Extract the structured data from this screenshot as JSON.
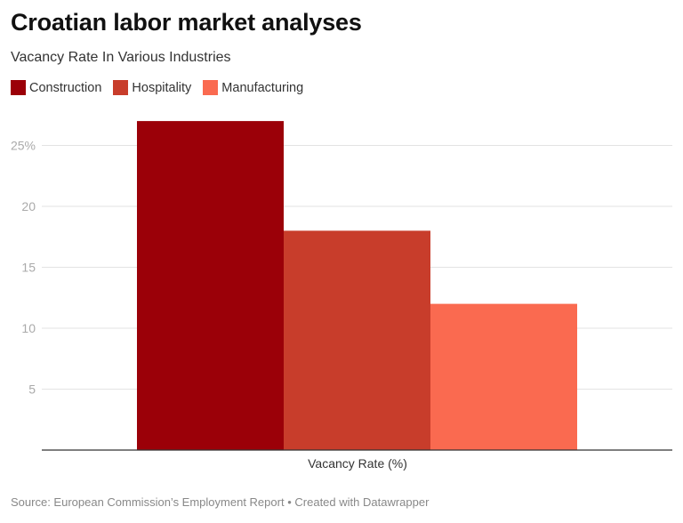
{
  "title": "Croatian labor market analyses",
  "subtitle": "Vacancy Rate In Various Industries",
  "footer": {
    "source": "Source: European Commission’s Employment Report",
    "separator": "•",
    "credit": "Created with Datawrapper"
  },
  "chart_data": {
    "type": "bar",
    "categories": [
      "Vacancy Rate (%)"
    ],
    "series": [
      {
        "name": "Construction",
        "values": [
          27
        ],
        "color": "#9b0008"
      },
      {
        "name": "Hospitality",
        "values": [
          18
        ],
        "color": "#c83d2b"
      },
      {
        "name": "Manufacturing",
        "values": [
          12
        ],
        "color": "#fa6a50"
      }
    ],
    "title": "",
    "xlabel": "Vacancy Rate (%)",
    "ylabel": "",
    "ylim": [
      0,
      27
    ],
    "yticks": [
      5,
      10,
      15,
      20,
      25
    ],
    "ytick_labels": [
      "5",
      "10",
      "15",
      "20",
      "25%"
    ],
    "grid": true,
    "legend": "top-left"
  }
}
